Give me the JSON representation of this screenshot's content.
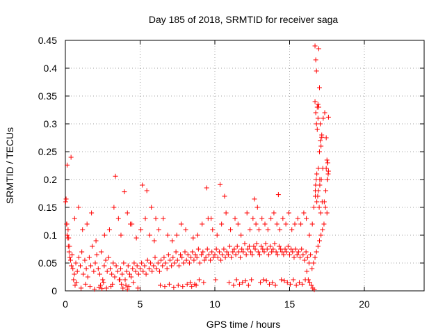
{
  "chart_data": {
    "type": "scatter",
    "title": "Day 185 of 2018, SRMTID for receiver saga",
    "xlabel": "GPS time / hours",
    "ylabel": "SRMTID / TECUs",
    "xlim": [
      0,
      24
    ],
    "ylim": [
      0,
      0.45
    ],
    "xticks": [
      0,
      5,
      10,
      15,
      20
    ],
    "xtick_labels": [
      "0",
      "5",
      "10",
      "15",
      "20"
    ],
    "yticks": [
      0,
      0.05,
      0.1,
      0.15,
      0.2,
      0.25,
      0.3,
      0.35,
      0.4,
      0.45
    ],
    "ytick_labels": [
      "0",
      "0.05",
      "0.1",
      "0.15",
      "0.2",
      "0.25",
      "0.3",
      "0.35",
      "0.4",
      "0.45"
    ],
    "grid": true,
    "marker": "+",
    "color": "#ff0000",
    "series": [
      {
        "name": "SRMTID",
        "x": [
          0.05,
          0.1,
          0.15,
          0.2,
          0.25,
          0.3,
          0.35,
          0.4,
          0.5,
          0.6,
          0.7,
          0.8,
          0.9,
          1.0,
          1.1,
          1.2,
          1.3,
          1.4,
          1.5,
          1.6,
          1.7,
          1.8,
          1.9,
          2.0,
          2.1,
          2.2,
          2.3,
          2.4,
          2.5,
          2.6,
          2.7,
          2.8,
          2.9,
          3.0,
          3.1,
          3.2,
          3.3,
          3.4,
          3.5,
          3.6,
          3.7,
          3.8,
          3.9,
          4.0,
          4.1,
          4.2,
          4.3,
          4.4,
          4.5,
          4.6,
          4.7,
          4.8,
          4.9,
          5.0,
          5.1,
          5.2,
          5.3,
          5.4,
          5.5,
          5.6,
          5.7,
          5.8,
          5.9,
          6.0,
          6.1,
          6.2,
          6.3,
          6.4,
          6.5,
          6.6,
          6.7,
          6.8,
          6.9,
          7.0,
          7.1,
          7.2,
          7.3,
          7.4,
          7.5,
          7.6,
          7.7,
          7.8,
          7.9,
          8.0,
          8.1,
          8.2,
          8.3,
          8.4,
          8.5,
          8.6,
          8.7,
          8.8,
          8.9,
          9.0,
          9.1,
          9.2,
          9.3,
          9.4,
          9.5,
          9.6,
          9.7,
          9.8,
          9.9,
          10.0,
          10.1,
          10.2,
          10.3,
          10.4,
          10.5,
          10.6,
          10.7,
          10.8,
          10.9,
          11.0,
          11.1,
          11.2,
          11.3,
          11.4,
          11.5,
          11.6,
          11.7,
          11.8,
          11.9,
          12.0,
          12.1,
          12.2,
          12.3,
          12.4,
          12.5,
          12.6,
          12.7,
          12.8,
          12.9,
          13.0,
          13.1,
          13.2,
          13.3,
          13.4,
          13.5,
          13.6,
          13.7,
          13.8,
          13.9,
          14.0,
          14.1,
          14.2,
          14.3,
          14.4,
          14.5,
          14.6,
          14.7,
          14.8,
          14.9,
          15.0,
          15.1,
          15.2,
          15.3,
          15.4,
          15.5,
          15.6,
          15.7,
          15.8,
          15.9,
          16.0,
          16.1,
          16.2,
          16.3,
          16.4,
          16.5,
          16.6,
          16.7,
          16.8,
          16.9,
          17.0,
          17.1,
          17.2,
          17.3,
          17.4,
          17.5,
          0.02,
          0.08,
          0.12,
          0.18,
          0.22,
          0.28,
          0.45,
          0.55,
          0.65,
          0.75,
          1.05,
          1.35,
          1.65,
          1.95,
          2.25,
          2.35,
          2.45,
          2.55,
          2.75,
          3.05,
          3.15,
          3.35,
          3.65,
          3.75,
          3.85,
          3.95,
          4.05,
          4.15,
          4.25,
          4.35,
          4.55,
          4.85,
          5.15,
          5.45,
          5.75,
          6.05,
          6.35,
          6.65,
          6.95,
          7.25,
          7.55,
          7.85,
          8.15,
          8.35,
          8.45,
          8.65,
          8.75,
          8.95,
          9.25,
          9.45,
          9.75,
          10.05,
          10.35,
          10.65,
          10.95,
          11.25,
          11.45,
          11.65,
          11.85,
          12.05,
          12.25,
          12.45,
          12.65,
          12.85,
          13.05,
          13.25,
          13.45,
          13.65,
          13.85,
          14.05,
          14.25,
          14.45,
          14.65,
          14.85,
          15.05,
          15.25,
          15.45,
          15.65,
          15.85,
          16.05,
          16.15,
          16.25,
          16.35,
          16.45,
          16.55,
          16.65,
          16.7,
          16.75,
          16.8,
          16.85,
          16.9,
          16.95,
          17.0,
          17.05,
          17.15,
          17.25,
          17.35,
          17.45,
          17.55,
          17.6,
          0.12,
          0.38,
          0.62,
          0.88,
          1.15,
          1.45,
          1.75,
          2.05,
          2.62,
          2.95,
          3.25,
          3.55,
          3.72,
          4.15,
          4.45,
          4.75,
          5.05,
          5.35,
          5.65,
          5.95,
          6.25,
          6.55,
          6.85,
          7.15,
          7.45,
          7.75,
          8.05,
          8.55,
          8.85,
          9.15,
          9.55,
          9.85,
          10.15,
          10.45,
          10.75,
          11.05,
          11.35,
          11.55,
          11.75,
          12.15,
          12.35,
          12.55,
          12.75,
          12.95,
          13.15,
          13.35,
          13.55,
          13.75,
          13.95,
          14.15,
          14.35,
          14.55,
          14.75,
          14.95,
          15.15,
          15.35,
          15.55,
          15.75,
          15.95,
          16.12,
          16.32,
          16.52,
          16.62,
          16.72,
          16.82,
          16.92,
          17.02,
          17.12,
          17.22,
          17.32,
          17.42,
          17.52,
          16.7,
          16.75,
          16.8,
          16.85,
          16.9,
          16.95,
          17.0,
          17.05,
          17.1,
          17.15,
          16.72,
          16.78,
          16.88,
          16.98,
          17.08,
          17.18,
          16.74,
          16.82,
          16.92,
          17.02,
          17.5,
          17.55,
          17.6,
          17.45,
          17.52,
          17.58
        ],
        "y": [
          0.165,
          0.12,
          0.095,
          0.08,
          0.07,
          0.06,
          0.055,
          0.045,
          0.04,
          0.03,
          0.05,
          0.035,
          0.06,
          0.045,
          0.07,
          0.03,
          0.055,
          0.04,
          0.025,
          0.06,
          0.045,
          0.08,
          0.035,
          0.05,
          0.065,
          0.04,
          0.03,
          0.07,
          0.02,
          0.045,
          0.055,
          0.035,
          0.06,
          0.04,
          0.03,
          0.05,
          0.025,
          0.045,
          0.035,
          0.02,
          0.04,
          0.03,
          0.05,
          0.02,
          0.035,
          0.045,
          0.03,
          0.025,
          0.04,
          0.05,
          0.035,
          0.045,
          0.03,
          0.04,
          0.05,
          0.035,
          0.045,
          0.03,
          0.055,
          0.04,
          0.05,
          0.035,
          0.045,
          0.06,
          0.04,
          0.05,
          0.035,
          0.055,
          0.045,
          0.06,
          0.05,
          0.04,
          0.065,
          0.055,
          0.045,
          0.06,
          0.05,
          0.07,
          0.055,
          0.045,
          0.065,
          0.06,
          0.05,
          0.07,
          0.055,
          0.065,
          0.05,
          0.06,
          0.07,
          0.055,
          0.065,
          0.06,
          0.075,
          0.05,
          0.065,
          0.07,
          0.055,
          0.06,
          0.075,
          0.065,
          0.055,
          0.07,
          0.06,
          0.065,
          0.075,
          0.06,
          0.07,
          0.055,
          0.065,
          0.075,
          0.06,
          0.07,
          0.065,
          0.08,
          0.06,
          0.07,
          0.075,
          0.065,
          0.08,
          0.07,
          0.06,
          0.075,
          0.07,
          0.085,
          0.065,
          0.075,
          0.08,
          0.07,
          0.065,
          0.08,
          0.075,
          0.085,
          0.07,
          0.065,
          0.08,
          0.075,
          0.07,
          0.085,
          0.075,
          0.065,
          0.08,
          0.07,
          0.075,
          0.085,
          0.07,
          0.065,
          0.08,
          0.075,
          0.07,
          0.065,
          0.075,
          0.07,
          0.08,
          0.065,
          0.075,
          0.07,
          0.06,
          0.075,
          0.065,
          0.07,
          0.06,
          0.075,
          0.065,
          0.055,
          0.07,
          0.06,
          0.05,
          0.065,
          0.04,
          0.05,
          0.06,
          0.07,
          0.08,
          0.09,
          0.1,
          0.11,
          0.12,
          0.15,
          0.14,
          0.16,
          0.12,
          0.1,
          0.11,
          0.095,
          0.08,
          0.065,
          0.02,
          0.01,
          0.015,
          0.005,
          0.012,
          0.008,
          0.003,
          0.006,
          0.01,
          0.004,
          0.015,
          0.005,
          0.008,
          0.012,
          0.206,
          0.02,
          0.012,
          0.005,
          0.178,
          0.01,
          0.003,
          0.008,
          0.12,
          0.015,
          0.005,
          0.19,
          0.18,
          0.15,
          0.13,
          0.01,
          0.008,
          0.012,
          0.006,
          0.01,
          0.008,
          0.012,
          0.015,
          0.008,
          0.012,
          0.01,
          0.02,
          0.015,
          0.185,
          0.13,
          0.02,
          0.191,
          0.17,
          0.015,
          0.01,
          0.02,
          0.012,
          0.015,
          0.018,
          0.01,
          0.02,
          0.165,
          0.15,
          0.015,
          0.02,
          0.018,
          0.012,
          0.015,
          0.01,
          0.173,
          0.02,
          0.018,
          0.015,
          0.012,
          0.02,
          0.01,
          0.015,
          0.012,
          0.02,
          0.035,
          0.02,
          0.015,
          0.01,
          0.005,
          0.002,
          0.44,
          0.415,
          0.395,
          0.33,
          0.335,
          0.435,
          0.365,
          0.3,
          0.276,
          0.31,
          0.32,
          0.275,
          0.23,
          0.215,
          0.226,
          0.24,
          0.13,
          0.15,
          0.11,
          0.12,
          0.14,
          0.09,
          0.1,
          0.11,
          0.15,
          0.13,
          0.1,
          0.14,
          0.12,
          0.095,
          0.11,
          0.13,
          0.1,
          0.09,
          0.11,
          0.13,
          0.1,
          0.09,
          0.1,
          0.12,
          0.11,
          0.095,
          0.1,
          0.12,
          0.13,
          0.11,
          0.1,
          0.12,
          0.14,
          0.11,
          0.13,
          0.12,
          0.1,
          0.14,
          0.11,
          0.13,
          0.12,
          0.11,
          0.13,
          0.12,
          0.11,
          0.13,
          0.14,
          0.12,
          0.11,
          0.13,
          0.12,
          0.14,
          0.11,
          0.12,
          0.13,
          0.12,
          0.14,
          0.13,
          0.1,
          0.12,
          0.15,
          0.17,
          0.16,
          0.18,
          0.19,
          0.2,
          0.22,
          0.16,
          0.18,
          0.2,
          0.34,
          0.32,
          0.3,
          0.29,
          0.31,
          0.33,
          0.25,
          0.27,
          0.26,
          0.28,
          0.18,
          0.2,
          0.17,
          0.15,
          0.14,
          0.16,
          0.19,
          0.21,
          0.22,
          0.2,
          0.235,
          0.23,
          0.312,
          0.22,
          0.2,
          0.21
        ]
      }
    ]
  }
}
